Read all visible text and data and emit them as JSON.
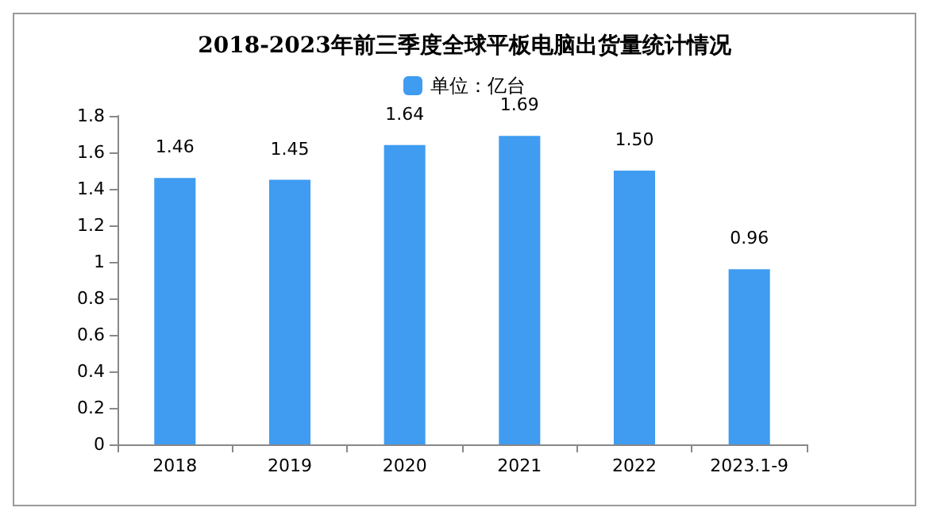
{
  "chart_data": {
    "type": "bar",
    "title": "2018-2023年前三季度全球平板电脑出货量统计情况",
    "categories": [
      "2018",
      "2019",
      "2020",
      "2021",
      "2022",
      "2023.1-9"
    ],
    "series": [
      {
        "name": "单位：亿台",
        "color": "#3f9cf1",
        "values": [
          1.46,
          1.45,
          1.64,
          1.69,
          1.5,
          0.96
        ],
        "value_labels": [
          "1.46",
          "1.45",
          "1.64",
          "1.69",
          "1.50",
          "0.96"
        ]
      }
    ],
    "ylim": [
      0,
      1.8
    ],
    "yticks": [
      0,
      0.2,
      0.4,
      0.6,
      0.8,
      1,
      1.2,
      1.4,
      1.6,
      1.8
    ],
    "grid": false,
    "legend": "top"
  }
}
